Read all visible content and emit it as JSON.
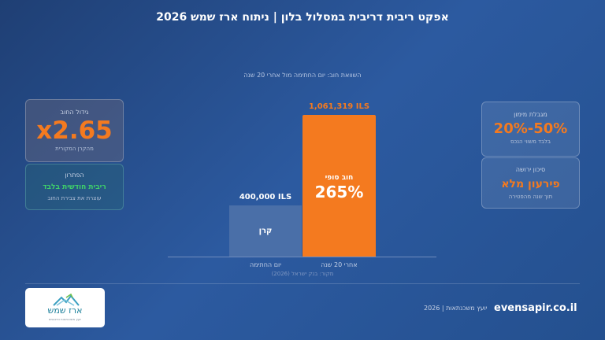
{
  "header": {
    "title": "אפקט ריבית דריבית במסלול בלון | ניתוח ארז שמש 2026",
    "subtitle": "השוואת חוב: יום החתימה מול אחרי 20 שנה"
  },
  "cards": {
    "growth": {
      "label": "גידול החוב",
      "value": "x2.65",
      "note": "מהקרן המקורית"
    },
    "solution": {
      "label": "הפתרון",
      "value": "ריבית חודשית בלבד",
      "note": "עוצרת את צבירת החוב"
    },
    "ceiling": {
      "label": "מגבלת מימון",
      "value": "20%-50%",
      "note": "בלבד משווי הנכס"
    },
    "inheritance": {
      "label": "סיכון ירושה",
      "value": "פירעון מלא",
      "note": "תוך שנה מהפטירה"
    }
  },
  "chart_data": {
    "type": "bar",
    "categories": [
      "יום החתימה",
      "אחרי 20 שנה"
    ],
    "values": [
      400000,
      1061319
    ],
    "value_labels": [
      "400,000 ILS",
      "1,061,319 ILS"
    ],
    "bar_inner_labels": [
      "קרן",
      "חוב סופי"
    ],
    "final_percent": "265%",
    "colors": [
      "#4a6fa8",
      "#f47a1f"
    ],
    "ylim": [
      0,
      1061319
    ],
    "source": "מקור: בנק ישראל (2026)"
  },
  "logo": {
    "name": "ארז שמש",
    "tagline": "יועץ משכנתאות ופיננסים"
  },
  "footer": {
    "site": "evensapir.co.il",
    "info": "יועץ משכנתאות | 2026"
  }
}
